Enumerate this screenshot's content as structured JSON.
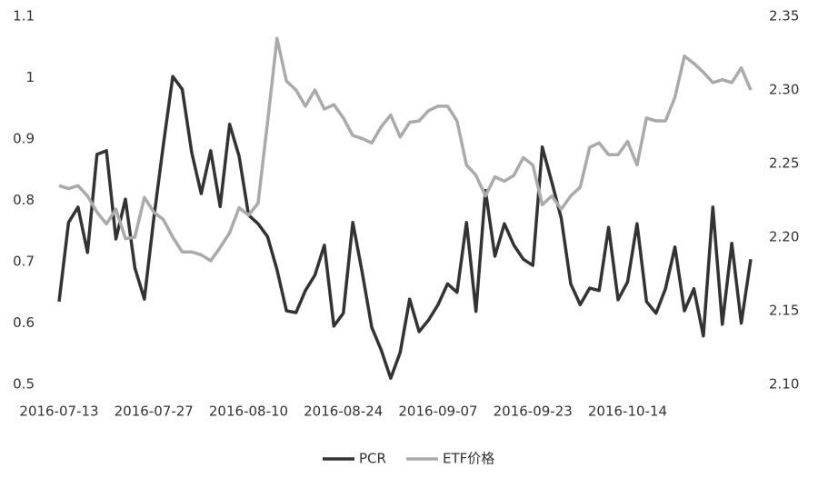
{
  "chart_data": {
    "type": "line",
    "categories": [
      "2016-07-13",
      null,
      null,
      null,
      null,
      null,
      null,
      null,
      null,
      null,
      "2016-07-27",
      null,
      null,
      null,
      null,
      null,
      null,
      null,
      null,
      null,
      "2016-08-10",
      null,
      null,
      null,
      null,
      null,
      null,
      null,
      null,
      null,
      "2016-08-24",
      null,
      null,
      null,
      null,
      null,
      null,
      null,
      null,
      null,
      "2016-09-07",
      null,
      null,
      null,
      null,
      null,
      null,
      null,
      null,
      null,
      "2016-09-23",
      null,
      null,
      null,
      null,
      null,
      null,
      null,
      null,
      null,
      "2016-10-14",
      null,
      null,
      null,
      null,
      null,
      null,
      null,
      null,
      null,
      null,
      null,
      null,
      null
    ],
    "series": [
      {
        "name": "PCR",
        "color": "#333333",
        "axis": "y",
        "values": [
          0.635,
          0.764,
          0.789,
          0.715,
          0.875,
          0.881,
          0.737,
          0.802,
          0.69,
          0.639,
          0.771,
          0.89,
          1.002,
          0.981,
          0.878,
          0.811,
          0.881,
          0.79,
          0.924,
          0.872,
          0.776,
          0.762,
          0.741,
          0.687,
          0.62,
          0.617,
          0.653,
          0.678,
          0.727,
          0.595,
          0.616,
          0.764,
          0.682,
          0.593,
          0.556,
          0.51,
          0.552,
          0.639,
          0.586,
          0.605,
          0.63,
          0.664,
          0.65,
          0.764,
          0.619,
          0.816,
          0.709,
          0.762,
          0.727,
          0.704,
          0.694,
          0.887,
          0.83,
          0.771,
          0.664,
          0.63,
          0.657,
          0.653,
          0.756,
          0.638,
          0.667,
          0.762,
          0.635,
          0.616,
          0.656,
          0.724,
          0.62,
          0.656,
          0.579,
          0.789,
          0.598,
          0.73,
          0.6,
          0.704
        ]
      },
      {
        "name": "ETF价格",
        "color": "#aaaaaa",
        "axis": "y2",
        "values": [
          2.235,
          2.233,
          2.235,
          2.228,
          2.217,
          2.209,
          2.219,
          2.199,
          2.2,
          2.227,
          2.217,
          2.212,
          2.2,
          2.19,
          2.19,
          2.188,
          2.184,
          2.193,
          2.203,
          2.22,
          2.215,
          2.223,
          2.278,
          2.335,
          2.306,
          2.3,
          2.289,
          2.3,
          2.287,
          2.29,
          2.281,
          2.269,
          2.267,
          2.264,
          2.275,
          2.283,
          2.268,
          2.278,
          2.279,
          2.286,
          2.289,
          2.289,
          2.279,
          2.249,
          2.242,
          2.228,
          2.241,
          2.238,
          2.242,
          2.254,
          2.249,
          2.222,
          2.228,
          2.219,
          2.228,
          2.234,
          2.261,
          2.264,
          2.256,
          2.256,
          2.265,
          2.249,
          2.281,
          2.279,
          2.279,
          2.295,
          2.323,
          2.318,
          2.312,
          2.305,
          2.307,
          2.305,
          2.315,
          2.3
        ]
      }
    ],
    "ylim": [
      0.5,
      1.1
    ],
    "yticks": [
      0.5,
      0.6,
      0.7,
      0.8,
      0.9,
      {
        "value": 1,
        "label": "1"
      },
      1.1
    ],
    "y2lim": [
      2.1,
      2.35
    ],
    "y2ticks": [
      {
        "value": 2.1,
        "label": "2.10"
      },
      2.15,
      {
        "value": 2.2,
        "label": "2.20"
      },
      2.25,
      {
        "value": 2.3,
        "label": "2.30"
      },
      2.35
    ],
    "legend": "bottom"
  }
}
